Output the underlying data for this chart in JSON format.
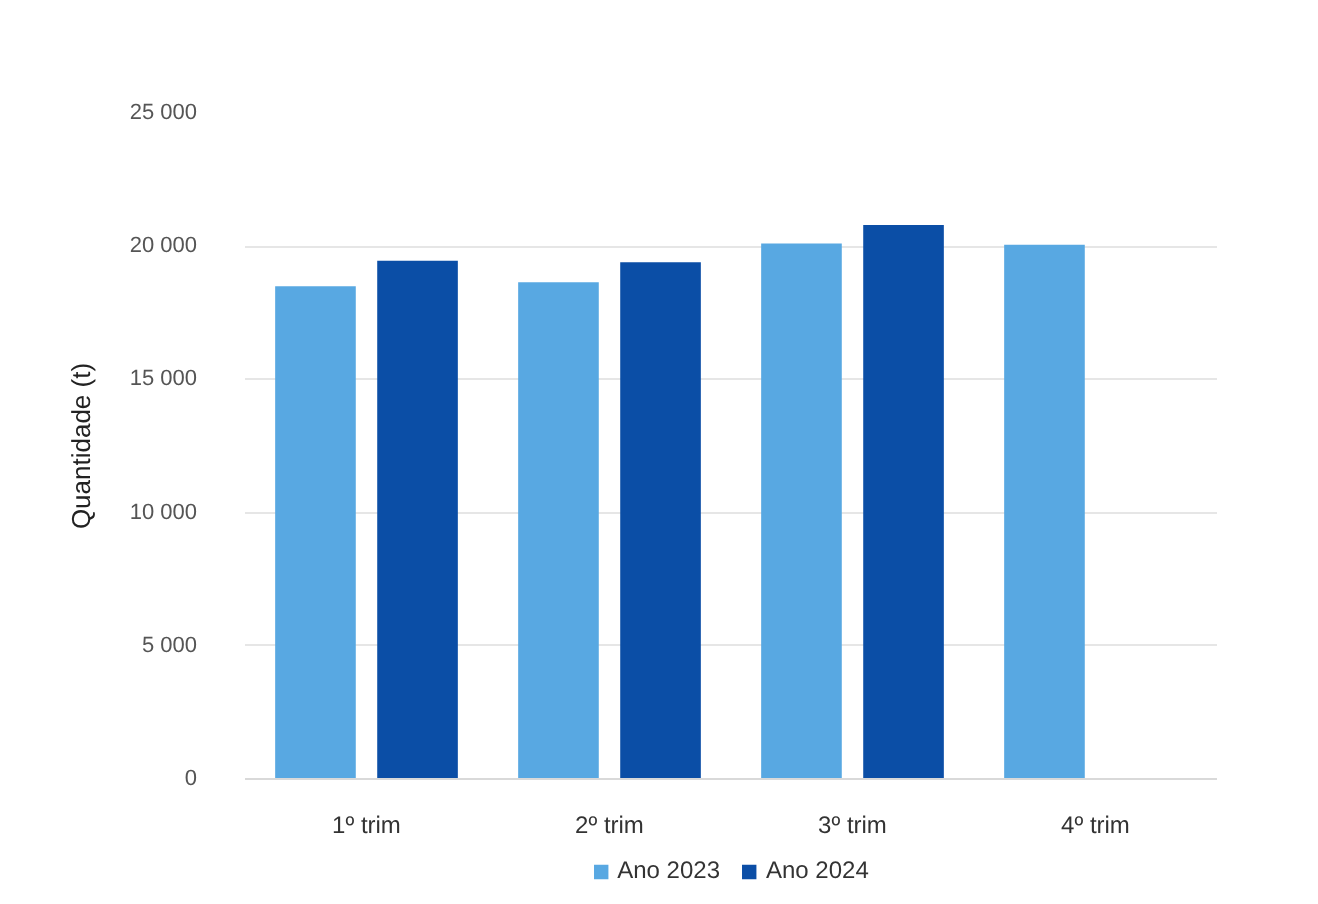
{
  "chart_data": {
    "type": "bar",
    "categories": [
      "1º trim",
      "2º trim",
      "3º trim",
      "4º trim"
    ],
    "series": [
      {
        "name": "Ano 2023",
        "color": "#58a8e2",
        "values": [
          18500,
          18650,
          20100,
          20050
        ]
      },
      {
        "name": "Ano 2024",
        "color": "#0b4ea6",
        "values": [
          19450,
          19400,
          20800,
          null
        ]
      }
    ],
    "ylabel": "Quantidade (t)",
    "ylim": [
      0,
      25000
    ],
    "yticks": [
      {
        "value": 0,
        "label": "0"
      },
      {
        "value": 5000,
        "label": "5 000"
      },
      {
        "value": 10000,
        "label": "10 000"
      },
      {
        "value": 15000,
        "label": "15 000"
      },
      {
        "value": 20000,
        "label": "20 000"
      },
      {
        "value": 25000,
        "label": "25 000"
      }
    ],
    "grid": "y",
    "legend": "bottom"
  }
}
